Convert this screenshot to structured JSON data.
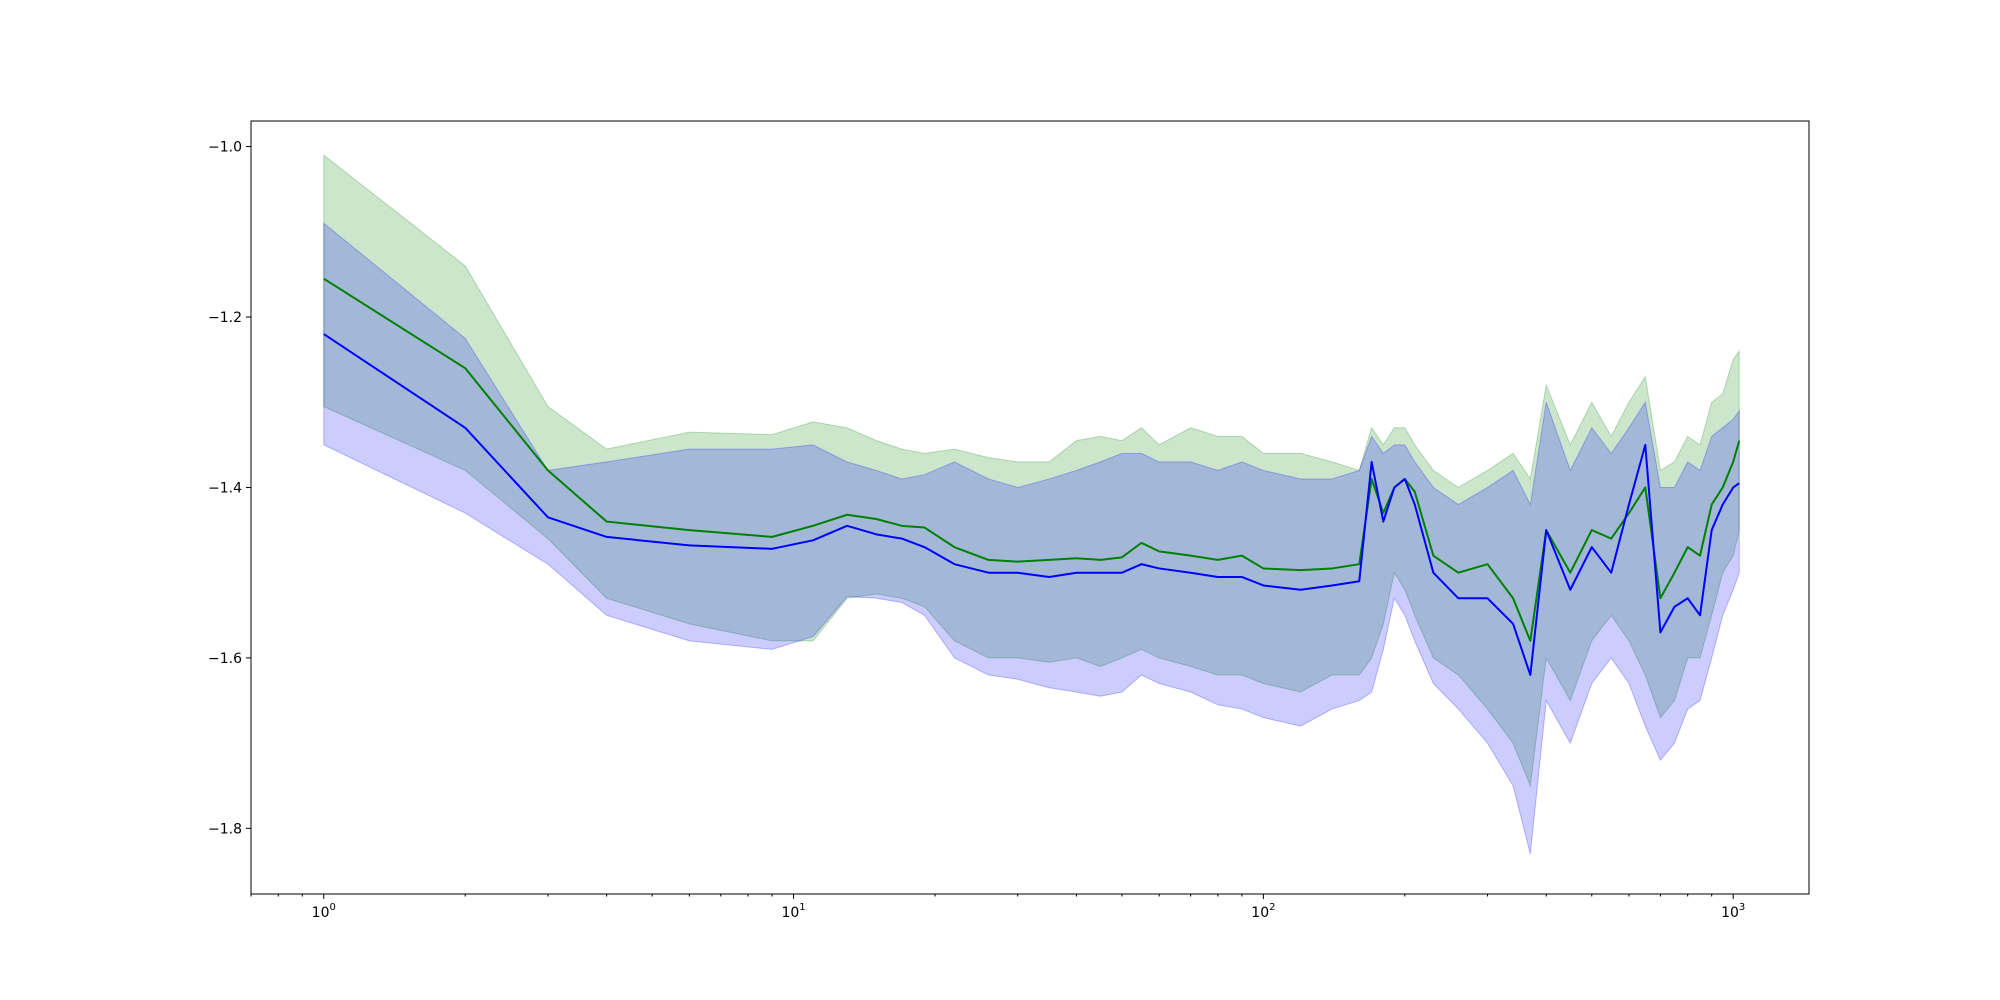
{
  "chart_data": {
    "type": "line",
    "title": "",
    "xlabel": "",
    "ylabel": "",
    "xscale": "log",
    "xlim": [
      0.7,
      1450
    ],
    "ylim": [
      -1.877,
      -0.97
    ],
    "grid": false,
    "x_tick_values": [
      1,
      10,
      100,
      1000
    ],
    "x_tick_labels": [
      {
        "base": "10",
        "exp": "0"
      },
      {
        "base": "10",
        "exp": "1"
      },
      {
        "base": "10",
        "exp": "2"
      },
      {
        "base": "10",
        "exp": "3"
      }
    ],
    "y_tick_values": [
      -1.0,
      -1.2,
      -1.4,
      -1.6,
      -1.8
    ],
    "y_tick_labels": [
      "−1.0",
      "−1.2",
      "−1.4",
      "−1.6",
      "−1.8"
    ],
    "series": [
      {
        "color": "#008000",
        "band_color": "#008000",
        "band_opacity": 0.2,
        "x": [
          1,
          2,
          3,
          4,
          6,
          9,
          11,
          13,
          15,
          17,
          19,
          22,
          26,
          30,
          35,
          40,
          45,
          50,
          55,
          60,
          70,
          80,
          90,
          100,
          120,
          140,
          160,
          170,
          180,
          190,
          200,
          210,
          230,
          260,
          300,
          340,
          370,
          400,
          450,
          500,
          550,
          600,
          650,
          700,
          750,
          800,
          850,
          900,
          950,
          1000,
          1030
        ],
        "mean": [
          -1.155,
          -1.26,
          -1.38,
          -1.44,
          -1.45,
          -1.458,
          -1.445,
          -1.432,
          -1.437,
          -1.445,
          -1.447,
          -1.47,
          -1.485,
          -1.487,
          -1.485,
          -1.483,
          -1.485,
          -1.482,
          -1.465,
          -1.475,
          -1.48,
          -1.485,
          -1.48,
          -1.495,
          -1.497,
          -1.495,
          -1.49,
          -1.39,
          -1.43,
          -1.4,
          -1.39,
          -1.405,
          -1.48,
          -1.5,
          -1.49,
          -1.53,
          -1.58,
          -1.45,
          -1.5,
          -1.45,
          -1.46,
          -1.43,
          -1.4,
          -1.53,
          -1.5,
          -1.47,
          -1.48,
          -1.42,
          -1.4,
          -1.37,
          -1.345
        ],
        "upper": [
          -1.01,
          -1.14,
          -1.305,
          -1.355,
          -1.335,
          -1.338,
          -1.323,
          -1.33,
          -1.345,
          -1.355,
          -1.36,
          -1.355,
          -1.365,
          -1.37,
          -1.37,
          -1.345,
          -1.34,
          -1.345,
          -1.33,
          -1.35,
          -1.33,
          -1.34,
          -1.34,
          -1.36,
          -1.36,
          -1.37,
          -1.38,
          -1.33,
          -1.35,
          -1.33,
          -1.33,
          -1.35,
          -1.38,
          -1.4,
          -1.38,
          -1.36,
          -1.39,
          -1.28,
          -1.35,
          -1.3,
          -1.34,
          -1.3,
          -1.27,
          -1.38,
          -1.37,
          -1.34,
          -1.35,
          -1.3,
          -1.29,
          -1.25,
          -1.24
        ],
        "lower": [
          -1.305,
          -1.38,
          -1.46,
          -1.53,
          -1.56,
          -1.58,
          -1.58,
          -1.53,
          -1.525,
          -1.53,
          -1.54,
          -1.58,
          -1.6,
          -1.6,
          -1.605,
          -1.6,
          -1.61,
          -1.6,
          -1.59,
          -1.6,
          -1.61,
          -1.62,
          -1.62,
          -1.63,
          -1.64,
          -1.62,
          -1.62,
          -1.6,
          -1.56,
          -1.5,
          -1.52,
          -1.55,
          -1.6,
          -1.62,
          -1.66,
          -1.7,
          -1.75,
          -1.6,
          -1.65,
          -1.58,
          -1.55,
          -1.58,
          -1.62,
          -1.67,
          -1.65,
          -1.6,
          -1.6,
          -1.55,
          -1.5,
          -1.48,
          -1.45
        ]
      },
      {
        "color": "#0000ff",
        "band_color": "#0000ff",
        "band_opacity": 0.2,
        "x": [
          1,
          2,
          3,
          4,
          6,
          9,
          11,
          13,
          15,
          17,
          19,
          22,
          26,
          30,
          35,
          40,
          45,
          50,
          55,
          60,
          70,
          80,
          90,
          100,
          120,
          140,
          160,
          170,
          180,
          190,
          200,
          210,
          230,
          260,
          300,
          340,
          370,
          400,
          450,
          500,
          550,
          600,
          650,
          700,
          750,
          800,
          850,
          900,
          950,
          1000,
          1030
        ],
        "mean": [
          -1.22,
          -1.33,
          -1.435,
          -1.458,
          -1.468,
          -1.472,
          -1.462,
          -1.445,
          -1.455,
          -1.46,
          -1.47,
          -1.49,
          -1.5,
          -1.5,
          -1.505,
          -1.5,
          -1.5,
          -1.5,
          -1.49,
          -1.495,
          -1.5,
          -1.505,
          -1.505,
          -1.515,
          -1.52,
          -1.515,
          -1.51,
          -1.37,
          -1.44,
          -1.4,
          -1.39,
          -1.42,
          -1.5,
          -1.53,
          -1.53,
          -1.56,
          -1.62,
          -1.45,
          -1.52,
          -1.47,
          -1.5,
          -1.42,
          -1.35,
          -1.57,
          -1.54,
          -1.53,
          -1.55,
          -1.45,
          -1.42,
          -1.4,
          -1.395
        ],
        "upper": [
          -1.09,
          -1.225,
          -1.38,
          -1.37,
          -1.355,
          -1.355,
          -1.35,
          -1.37,
          -1.38,
          -1.39,
          -1.385,
          -1.37,
          -1.39,
          -1.4,
          -1.39,
          -1.38,
          -1.37,
          -1.36,
          -1.36,
          -1.37,
          -1.37,
          -1.38,
          -1.37,
          -1.38,
          -1.39,
          -1.39,
          -1.38,
          -1.34,
          -1.36,
          -1.35,
          -1.35,
          -1.37,
          -1.4,
          -1.42,
          -1.4,
          -1.38,
          -1.42,
          -1.3,
          -1.38,
          -1.33,
          -1.36,
          -1.33,
          -1.3,
          -1.4,
          -1.4,
          -1.37,
          -1.38,
          -1.34,
          -1.33,
          -1.32,
          -1.31
        ],
        "lower": [
          -1.35,
          -1.43,
          -1.49,
          -1.55,
          -1.58,
          -1.59,
          -1.575,
          -1.528,
          -1.53,
          -1.535,
          -1.55,
          -1.6,
          -1.62,
          -1.625,
          -1.635,
          -1.64,
          -1.645,
          -1.64,
          -1.62,
          -1.63,
          -1.64,
          -1.655,
          -1.66,
          -1.67,
          -1.68,
          -1.66,
          -1.65,
          -1.64,
          -1.59,
          -1.53,
          -1.55,
          -1.58,
          -1.63,
          -1.66,
          -1.7,
          -1.75,
          -1.83,
          -1.65,
          -1.7,
          -1.63,
          -1.6,
          -1.63,
          -1.68,
          -1.72,
          -1.7,
          -1.66,
          -1.65,
          -1.6,
          -1.55,
          -1.52,
          -1.5
        ]
      }
    ]
  }
}
